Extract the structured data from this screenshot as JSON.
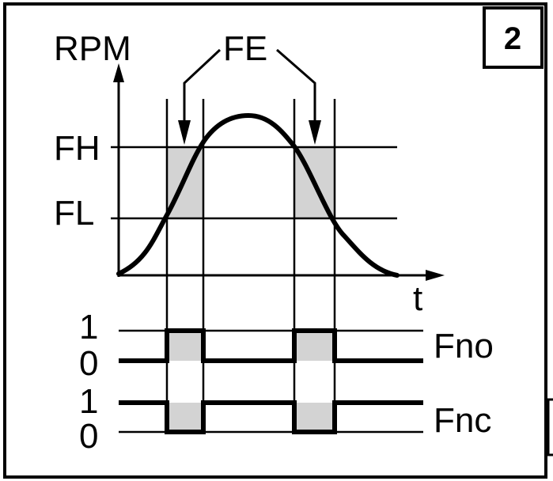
{
  "figure_number": "2",
  "y_axis_label": "RPM",
  "x_axis_label": "t",
  "level_labels": {
    "high": "FH",
    "low": "FL"
  },
  "window_label": "FE",
  "outputs": [
    {
      "name": "Fno",
      "one_label": "1",
      "zero_label": "0"
    },
    {
      "name": "Fnc",
      "one_label": "1",
      "zero_label": "0"
    }
  ],
  "colors": {
    "line": "#000000",
    "window_fill": "#d3d3d3",
    "background": "#ffffff"
  }
}
